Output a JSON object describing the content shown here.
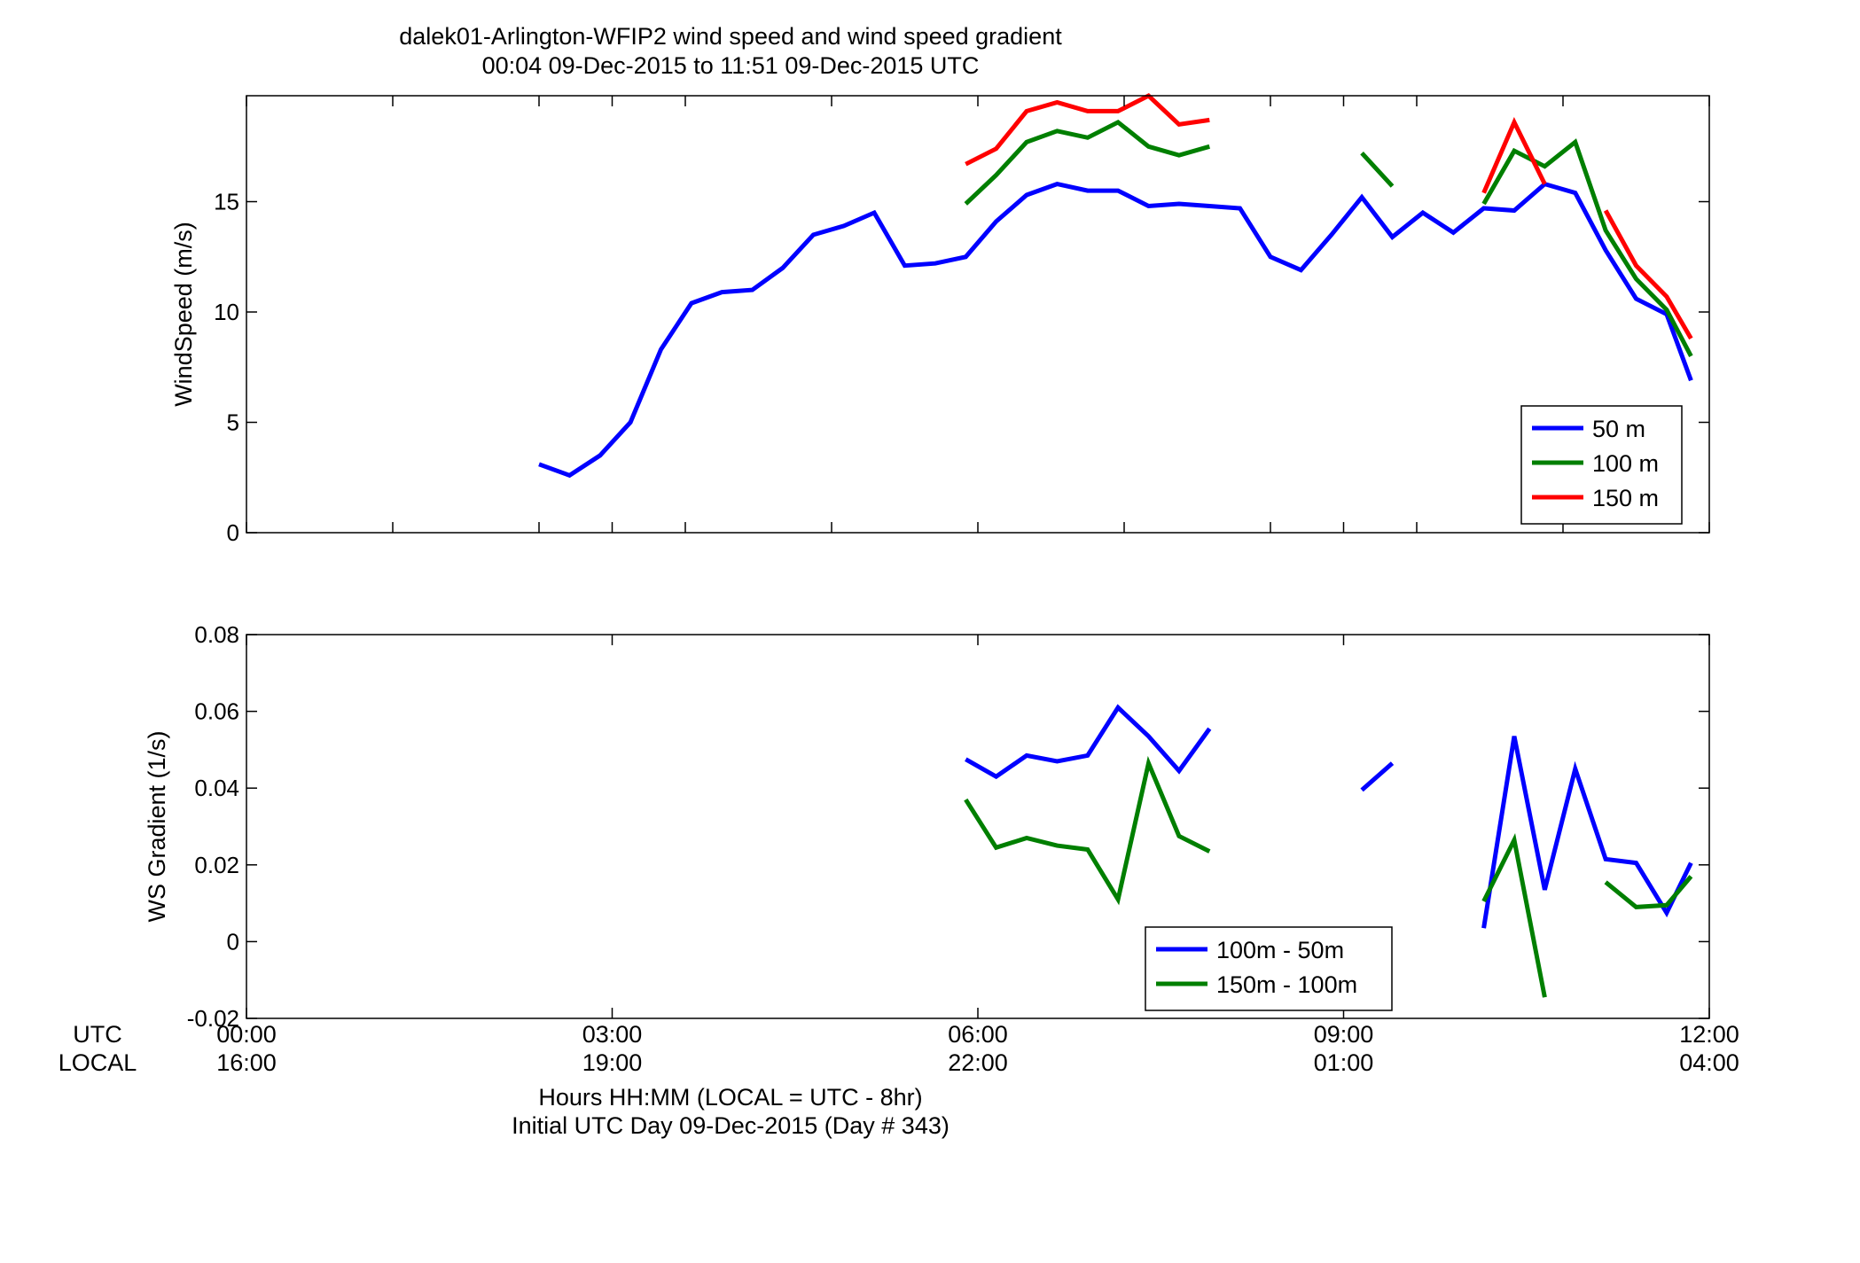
{
  "figure": {
    "title_line1": "dalek01-Arlington-WFIP2  wind speed and wind speed gradient",
    "title_line2": "00:04 09-Dec-2015 to 11:51 09-Dec-2015  UTC",
    "row_label_utc": "UTC",
    "row_label_local": "LOCAL",
    "xlabel_line1": "Hours HH:MM  (LOCAL = UTC - 8hr)",
    "xlabel_line2": "Initial UTC Day 09-Dec-2015 (Day # 343)",
    "xticks_utc": [
      "00:00",
      "03:00",
      "06:00",
      "09:00",
      "12:00"
    ],
    "xticks_local": [
      "16:00",
      "19:00",
      "22:00",
      "01:00",
      "04:00"
    ]
  },
  "chart_data": [
    {
      "type": "line",
      "ylabel": "WindSpeed (m/s)",
      "xlim": [
        0,
        12
      ],
      "ylim": [
        0,
        19.8
      ],
      "yticks": [
        0,
        5,
        10,
        15
      ],
      "ytick_labels": [
        "0",
        "5",
        "10",
        "15"
      ],
      "xticks": [
        0,
        3,
        6,
        9,
        12
      ],
      "minor_xticks": [
        1.2,
        2.4,
        3.6,
        4.8,
        7.2,
        8.4,
        9.6,
        10.8
      ],
      "legend_position": "bottom-right",
      "series": [
        {
          "name": "50 m",
          "color": "#0000ff",
          "x": [
            2.4,
            2.65,
            2.9,
            3.15,
            3.4,
            3.65,
            3.9,
            4.15,
            4.4,
            4.65,
            4.9,
            5.15,
            5.4,
            5.65,
            5.9,
            6.15,
            6.4,
            6.65,
            6.9,
            7.15,
            7.4,
            7.65,
            7.9,
            8.15,
            8.4,
            8.65,
            8.9,
            9.15,
            9.4,
            9.65,
            9.9,
            10.15,
            10.4,
            10.65,
            10.9,
            11.15,
            11.4,
            11.65,
            11.85
          ],
          "y": [
            3.1,
            2.6,
            3.5,
            5.0,
            8.3,
            10.4,
            10.9,
            11.0,
            12.0,
            13.5,
            13.9,
            14.5,
            12.1,
            12.2,
            12.5,
            14.1,
            15.3,
            15.8,
            15.5,
            15.5,
            14.8,
            14.9,
            14.8,
            14.7,
            12.5,
            11.9,
            13.5,
            15.2,
            13.4,
            14.5,
            13.6,
            14.7,
            14.6,
            15.8,
            15.4,
            12.8,
            10.6,
            9.9,
            6.9
          ]
        },
        {
          "name": "100 m",
          "color": "#007f00",
          "segments": [
            {
              "x": [
                5.9,
                6.15,
                6.4,
                6.65,
                6.9,
                7.15,
                7.4,
                7.65,
                7.9
              ],
              "y": [
                14.9,
                16.2,
                17.7,
                18.2,
                17.9,
                18.6,
                17.5,
                17.1,
                17.5
              ]
            },
            {
              "x": [
                9.15,
                9.4
              ],
              "y": [
                17.2,
                15.7
              ]
            },
            {
              "x": [
                10.15,
                10.4,
                10.65,
                10.9,
                11.15,
                11.4,
                11.65,
                11.85
              ],
              "y": [
                14.9,
                17.3,
                16.6,
                17.7,
                13.7,
                11.5,
                10.1,
                8.0
              ]
            }
          ]
        },
        {
          "name": "150 m",
          "color": "#ff0000",
          "segments": [
            {
              "x": [
                5.9,
                6.15,
                6.4,
                6.65,
                6.9,
                7.15,
                7.4,
                7.65,
                7.9
              ],
              "y": [
                16.7,
                17.4,
                19.1,
                19.5,
                19.1,
                19.1,
                19.8,
                18.5,
                18.7
              ]
            },
            {
              "x": [
                10.15,
                10.4,
                10.65
              ],
              "y": [
                15.4,
                18.6,
                15.8
              ]
            },
            {
              "x": [
                11.15,
                11.4,
                11.65,
                11.85
              ],
              "y": [
                14.6,
                12.1,
                10.7,
                8.8
              ]
            }
          ]
        }
      ]
    },
    {
      "type": "line",
      "ylabel": "WS Gradient (1/s)",
      "xlim": [
        0,
        12
      ],
      "ylim": [
        -0.02,
        0.08
      ],
      "yticks": [
        -0.02,
        0,
        0.02,
        0.04,
        0.06,
        0.08
      ],
      "ytick_labels": [
        "-0.02",
        "0",
        "0.02",
        "0.04",
        "0.06",
        "0.08"
      ],
      "xticks": [
        0,
        3,
        6,
        9,
        12
      ],
      "legend_position": "bottom-center",
      "series": [
        {
          "name": "100m - 50m",
          "color": "#0000ff",
          "segments": [
            {
              "x": [
                5.9,
                6.15,
                6.4,
                6.65,
                6.9,
                7.15,
                7.4,
                7.65,
                7.9
              ],
              "y": [
                0.0475,
                0.043,
                0.0485,
                0.047,
                0.0485,
                0.061,
                0.0535,
                0.0445,
                0.0555
              ]
            },
            {
              "x": [
                9.15,
                9.4
              ],
              "y": [
                0.0395,
                0.0465
              ]
            },
            {
              "x": [
                10.15,
                10.4,
                10.65,
                10.9,
                11.15,
                11.4,
                11.65,
                11.85
              ],
              "y": [
                0.0035,
                0.0535,
                0.0135,
                0.045,
                0.0215,
                0.0205,
                0.0075,
                0.0205
              ]
            }
          ]
        },
        {
          "name": "150m - 100m",
          "color": "#007f00",
          "segments": [
            {
              "x": [
                5.9,
                6.15,
                6.4,
                6.65,
                6.9,
                7.15,
                7.4,
                7.65,
                7.9
              ],
              "y": [
                0.037,
                0.0245,
                0.027,
                0.025,
                0.024,
                0.011,
                0.0465,
                0.0275,
                0.0235
              ]
            },
            {
              "x": [
                10.15,
                10.4,
                10.65
              ],
              "y": [
                0.0105,
                0.0265,
                -0.0145
              ]
            },
            {
              "x": [
                11.15,
                11.4,
                11.65,
                11.85
              ],
              "y": [
                0.0155,
                0.009,
                0.0095,
                0.017
              ]
            }
          ]
        }
      ]
    }
  ]
}
